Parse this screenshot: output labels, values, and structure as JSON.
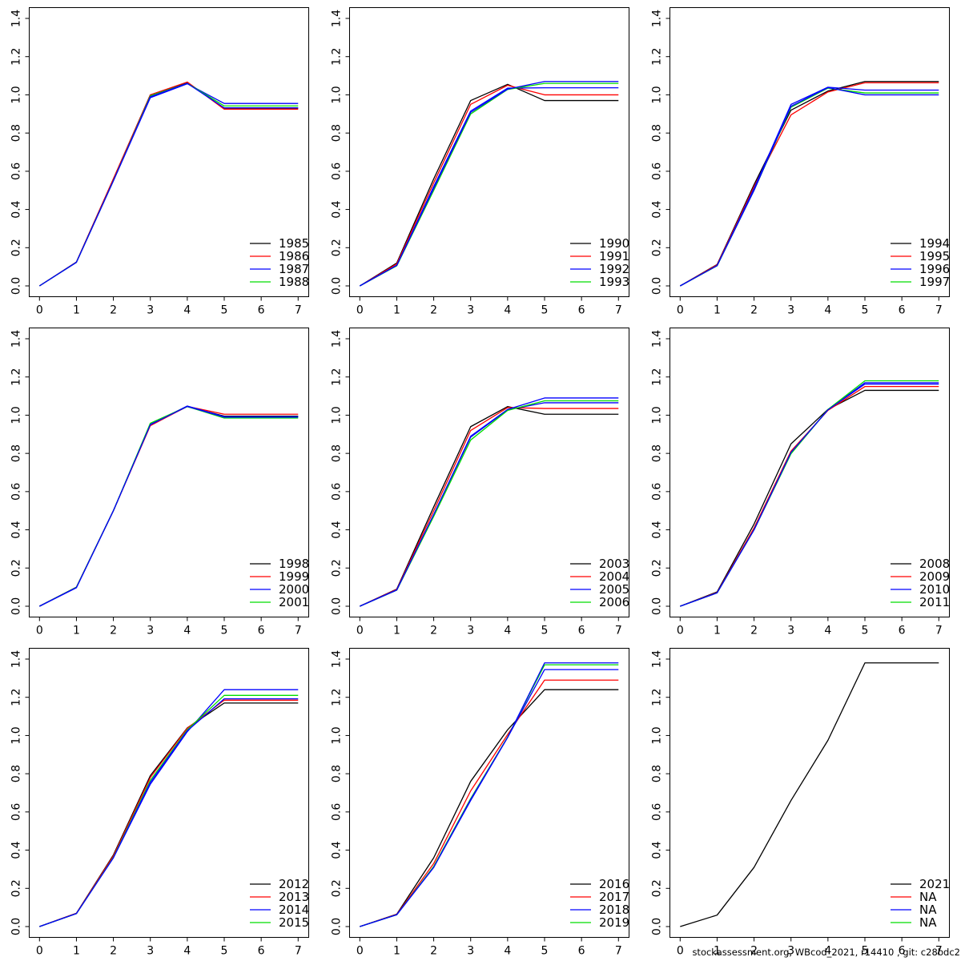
{
  "footer": {
    "text": "stockassessment.org, WBcod_2021, r14410 , git: c28bdc2"
  },
  "palette": {
    "black": "#000000",
    "red": "#ff0000",
    "blue": "#0000ff",
    "green": "#00dd00"
  },
  "axes": {
    "x_ticks": [
      "0",
      "1",
      "2",
      "3",
      "4",
      "5",
      "6",
      "7"
    ],
    "y_ticks": [
      "0.0",
      "0.2",
      "0.4",
      "0.6",
      "0.8",
      "1.0",
      "1.2",
      "1.4"
    ],
    "x_range": [
      0,
      7
    ],
    "y_range": [
      0,
      1.4
    ]
  },
  "chart_data": [
    {
      "type": "line",
      "xlabel": "",
      "ylabel": "",
      "x": [
        0,
        1,
        2,
        3,
        4,
        5,
        6,
        7
      ],
      "xlim": [
        0,
        7
      ],
      "ylim": [
        0,
        1.4
      ],
      "legend_position": "bottom-right",
      "grid": false,
      "legend": [
        "1985",
        "1986",
        "1987",
        "1988"
      ],
      "series": [
        {
          "label": "1985",
          "color": "black",
          "values": [
            0,
            0.125,
            0.56,
            1.0,
            1.065,
            0.93,
            0.93,
            0.93
          ]
        },
        {
          "label": "1986",
          "color": "red",
          "values": [
            0,
            0.125,
            0.56,
            1.0,
            1.067,
            0.925,
            0.925,
            0.925
          ]
        },
        {
          "label": "1987",
          "color": "blue",
          "values": [
            0,
            0.123,
            0.55,
            0.985,
            1.058,
            0.955,
            0.955,
            0.955
          ]
        },
        {
          "label": "1988",
          "color": "green",
          "values": [
            0,
            0.124,
            0.55,
            0.995,
            1.06,
            0.942,
            0.942,
            0.942
          ]
        },
        {
          "label": null,
          "color": "blue",
          "values": [
            0,
            0.124,
            0.55,
            0.99,
            1.06,
            0.932,
            0.932,
            0.932
          ]
        }
      ]
    },
    {
      "type": "line",
      "xlabel": "",
      "ylabel": "",
      "x": [
        0,
        1,
        2,
        3,
        4,
        5,
        6,
        7
      ],
      "xlim": [
        0,
        7
      ],
      "ylim": [
        0,
        1.4
      ],
      "legend_position": "bottom-right",
      "grid": false,
      "legend": [
        "1990",
        "1991",
        "1992",
        "1993"
      ],
      "series": [
        {
          "label": "1990",
          "color": "black",
          "values": [
            0,
            0.12,
            0.56,
            0.97,
            1.055,
            0.97,
            0.97,
            0.97
          ]
        },
        {
          "label": "1991",
          "color": "red",
          "values": [
            0,
            0.115,
            0.54,
            0.95,
            1.05,
            1.0,
            1.0,
            1.0
          ]
        },
        {
          "label": "1992",
          "color": "blue",
          "values": [
            0,
            0.108,
            0.52,
            0.915,
            1.035,
            1.037,
            1.037,
            1.037
          ]
        },
        {
          "label": "1993",
          "color": "green",
          "values": [
            0,
            0.105,
            0.5,
            0.9,
            1.028,
            1.06,
            1.06,
            1.06
          ]
        },
        {
          "label": null,
          "color": "blue",
          "values": [
            0,
            0.107,
            0.51,
            0.908,
            1.03,
            1.07,
            1.07,
            1.07
          ]
        }
      ]
    },
    {
      "type": "line",
      "xlabel": "",
      "ylabel": "",
      "x": [
        0,
        1,
        2,
        3,
        4,
        5,
        6,
        7
      ],
      "xlim": [
        0,
        7
      ],
      "ylim": [
        0,
        1.4
      ],
      "legend_position": "bottom-right",
      "grid": false,
      "legend": [
        "1994",
        "1995",
        "1996",
        "1997"
      ],
      "series": [
        {
          "label": "1994",
          "color": "black",
          "values": [
            0,
            0.112,
            0.53,
            0.92,
            1.02,
            1.07,
            1.07,
            1.07
          ]
        },
        {
          "label": "1995",
          "color": "red",
          "values": [
            0,
            0.11,
            0.52,
            0.895,
            1.015,
            1.063,
            1.063,
            1.063
          ]
        },
        {
          "label": "1996",
          "color": "blue",
          "values": [
            0,
            0.106,
            0.51,
            0.95,
            1.04,
            1.025,
            1.025,
            1.025
          ]
        },
        {
          "label": "1997",
          "color": "green",
          "values": [
            0,
            0.105,
            0.5,
            0.935,
            1.035,
            1.01,
            1.01,
            1.01
          ]
        },
        {
          "label": null,
          "color": "blue",
          "values": [
            0,
            0.106,
            0.5,
            0.94,
            1.038,
            1.0,
            1.0,
            1.0
          ]
        }
      ]
    },
    {
      "type": "line",
      "xlabel": "",
      "ylabel": "",
      "x": [
        0,
        1,
        2,
        3,
        4,
        5,
        6,
        7
      ],
      "xlim": [
        0,
        7
      ],
      "ylim": [
        0,
        1.4
      ],
      "legend_position": "bottom-right",
      "grid": false,
      "legend": [
        "1998",
        "1999",
        "2000",
        "2001"
      ],
      "series": [
        {
          "label": "1998",
          "color": "black",
          "values": [
            0,
            0.1,
            0.5,
            0.95,
            1.045,
            0.995,
            0.995,
            0.995
          ]
        },
        {
          "label": "1999",
          "color": "red",
          "values": [
            0,
            0.1,
            0.5,
            0.945,
            1.046,
            1.005,
            1.005,
            1.005
          ]
        },
        {
          "label": "2000",
          "color": "blue",
          "values": [
            0,
            0.097,
            0.5,
            0.952,
            1.048,
            0.992,
            0.992,
            0.992
          ]
        },
        {
          "label": "2001",
          "color": "green",
          "values": [
            0,
            0.1,
            0.5,
            0.958,
            1.045,
            0.985,
            0.985,
            0.985
          ]
        },
        {
          "label": null,
          "color": "blue",
          "values": [
            0,
            0.098,
            0.5,
            0.95,
            1.046,
            0.99,
            0.99,
            0.99
          ]
        }
      ]
    },
    {
      "type": "line",
      "xlabel": "",
      "ylabel": "",
      "x": [
        0,
        1,
        2,
        3,
        4,
        5,
        6,
        7
      ],
      "xlim": [
        0,
        7
      ],
      "ylim": [
        0,
        1.4
      ],
      "legend_position": "bottom-right",
      "grid": false,
      "legend": [
        "2003",
        "2004",
        "2005",
        "2006"
      ],
      "series": [
        {
          "label": "2003",
          "color": "black",
          "values": [
            0,
            0.09,
            0.52,
            0.94,
            1.045,
            1.005,
            1.005,
            1.005
          ]
        },
        {
          "label": "2004",
          "color": "red",
          "values": [
            0,
            0.088,
            0.5,
            0.92,
            1.04,
            1.035,
            1.035,
            1.035
          ]
        },
        {
          "label": "2005",
          "color": "blue",
          "values": [
            0,
            0.085,
            0.48,
            0.885,
            1.028,
            1.065,
            1.065,
            1.065
          ]
        },
        {
          "label": "2006",
          "color": "green",
          "values": [
            0,
            0.084,
            0.47,
            0.87,
            1.025,
            1.075,
            1.075,
            1.075
          ]
        },
        {
          "label": null,
          "color": "blue",
          "values": [
            0,
            0.085,
            0.48,
            0.89,
            1.03,
            1.09,
            1.09,
            1.09
          ]
        }
      ]
    },
    {
      "type": "line",
      "xlabel": "",
      "ylabel": "",
      "x": [
        0,
        1,
        2,
        3,
        4,
        5,
        6,
        7
      ],
      "xlim": [
        0,
        7
      ],
      "ylim": [
        0,
        1.4
      ],
      "legend_position": "bottom-right",
      "grid": false,
      "legend": [
        "2008",
        "2009",
        "2010",
        "2011"
      ],
      "series": [
        {
          "label": "2008",
          "color": "black",
          "values": [
            0,
            0.075,
            0.43,
            0.85,
            1.03,
            1.13,
            1.13,
            1.13
          ]
        },
        {
          "label": "2009",
          "color": "red",
          "values": [
            0,
            0.072,
            0.41,
            0.812,
            1.025,
            1.15,
            1.15,
            1.15
          ]
        },
        {
          "label": "2010",
          "color": "blue",
          "values": [
            0,
            0.07,
            0.4,
            0.8,
            1.028,
            1.17,
            1.17,
            1.17
          ]
        },
        {
          "label": "2011",
          "color": "green",
          "values": [
            0,
            0.07,
            0.4,
            0.798,
            1.03,
            1.18,
            1.18,
            1.18
          ]
        },
        {
          "label": null,
          "color": "blue",
          "values": [
            0,
            0.07,
            0.4,
            0.805,
            1.028,
            1.163,
            1.163,
            1.163
          ]
        }
      ]
    },
    {
      "type": "line",
      "xlabel": "",
      "ylabel": "",
      "x": [
        0,
        1,
        2,
        3,
        4,
        5,
        6,
        7
      ],
      "xlim": [
        0,
        7
      ],
      "ylim": [
        0,
        1.4
      ],
      "legend_position": "bottom-right",
      "grid": false,
      "legend": [
        "2012",
        "2013",
        "2014",
        "2015"
      ],
      "series": [
        {
          "label": "2012",
          "color": "black",
          "values": [
            0,
            0.07,
            0.375,
            0.79,
            1.04,
            1.17,
            1.17,
            1.17
          ]
        },
        {
          "label": "2013",
          "color": "red",
          "values": [
            0,
            0.07,
            0.37,
            0.78,
            1.038,
            1.185,
            1.185,
            1.185
          ]
        },
        {
          "label": "2014",
          "color": "blue",
          "values": [
            0,
            0.068,
            0.36,
            0.745,
            1.02,
            1.24,
            1.24,
            1.24
          ]
        },
        {
          "label": "2015",
          "color": "green",
          "values": [
            0,
            0.068,
            0.362,
            0.765,
            1.03,
            1.21,
            1.21,
            1.21
          ]
        },
        {
          "label": null,
          "color": "blue",
          "values": [
            0,
            0.068,
            0.36,
            0.755,
            1.025,
            1.192,
            1.192,
            1.192
          ]
        }
      ]
    },
    {
      "type": "line",
      "xlabel": "",
      "ylabel": "",
      "x": [
        0,
        1,
        2,
        3,
        4,
        5,
        6,
        7
      ],
      "xlim": [
        0,
        7
      ],
      "ylim": [
        0,
        1.4
      ],
      "legend_position": "bottom-right",
      "grid": false,
      "legend": [
        "2016",
        "2017",
        "2018",
        "2019"
      ],
      "series": [
        {
          "label": "2016",
          "color": "black",
          "values": [
            0,
            0.065,
            0.36,
            0.76,
            1.03,
            1.24,
            1.24,
            1.24
          ]
        },
        {
          "label": "2017",
          "color": "red",
          "values": [
            0,
            0.064,
            0.33,
            0.71,
            1.005,
            1.29,
            1.29,
            1.29
          ]
        },
        {
          "label": "2018",
          "color": "blue",
          "values": [
            0,
            0.062,
            0.31,
            0.66,
            0.99,
            1.345,
            1.345,
            1.345
          ]
        },
        {
          "label": "2019",
          "color": "green",
          "values": [
            0,
            0.062,
            0.315,
            0.67,
            0.992,
            1.37,
            1.37,
            1.37
          ]
        },
        {
          "label": null,
          "color": "blue",
          "values": [
            0,
            0.062,
            0.31,
            0.665,
            0.99,
            1.38,
            1.38,
            1.38
          ]
        }
      ]
    },
    {
      "type": "line",
      "xlabel": "",
      "ylabel": "",
      "x": [
        0,
        1,
        2,
        3,
        4,
        5,
        6,
        7
      ],
      "xlim": [
        0,
        7
      ],
      "ylim": [
        0,
        1.4
      ],
      "legend_position": "bottom-right",
      "grid": false,
      "legend": [
        "2021",
        "NA",
        "NA",
        "NA"
      ],
      "legend_colors": [
        "black",
        "red",
        "blue",
        "green"
      ],
      "series": [
        {
          "label": "2021",
          "color": "black",
          "values": [
            0,
            0.06,
            0.31,
            0.66,
            0.975,
            1.38,
            1.38,
            1.38
          ]
        }
      ]
    }
  ]
}
